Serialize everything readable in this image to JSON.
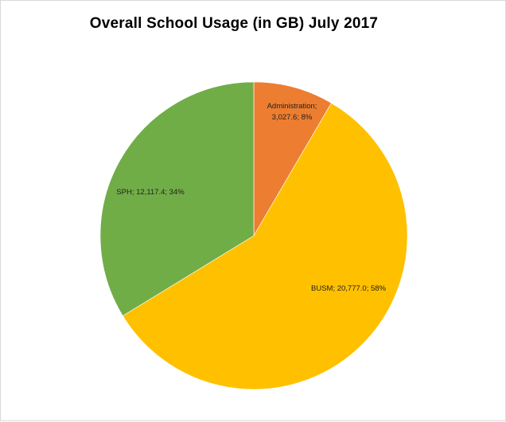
{
  "chart_data": {
    "type": "pie",
    "title": "Overall School Usage (in GB) July 2017",
    "slices": [
      {
        "name": "Administration",
        "value": 3027.6,
        "value_label": "3,027.6",
        "percent_label": "8%",
        "color": "#ED7D31"
      },
      {
        "name": "BUSM",
        "value": 20777.0,
        "value_label": "20,777.0",
        "percent_label": "58%",
        "color": "#FFC000"
      },
      {
        "name": "SPH",
        "value": 12117.4,
        "value_label": "12,117.4",
        "percent_label": "34%",
        "color": "#70AD47"
      }
    ],
    "legend": "none",
    "data_labels": "name; value; percent"
  }
}
